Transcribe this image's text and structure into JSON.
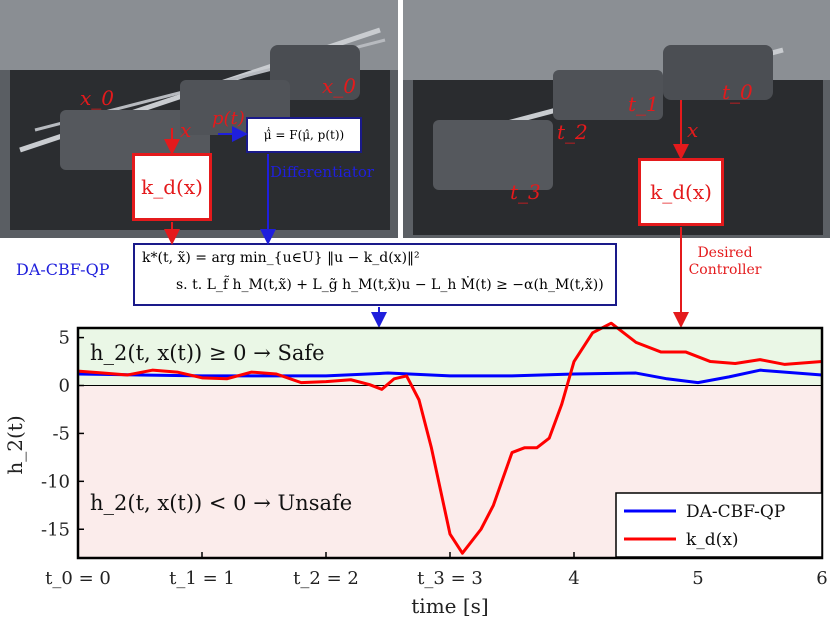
{
  "photos": {
    "left_labels": [
      "x_0",
      "x_0",
      "x",
      "p(t)"
    ],
    "right_labels": [
      "t_0",
      "t_1",
      "t_2",
      "t_3",
      "x"
    ]
  },
  "blocks": {
    "kd_left": "k_d(x)",
    "kd_right": "k_d(x)",
    "differentiator_eq": "μ̂̇ = F(μ̂, p(t))",
    "differentiator_label": "Differentiator",
    "qp_label": "DA-CBF-QP",
    "qp_line1": "k*(t, x̃) = arg min_{u∈U} ‖u − k_d(x)‖²",
    "qp_line2": "s. t. L_f̃ h_M(t,x̃) + L_g̃ h_M(t,x̃)u − L_h Ṁ(t) ≥ −α(h_M(t,x̃))",
    "desired_line1": "Desired",
    "desired_line2": "Controller"
  },
  "colors": {
    "red": "#e41a1c",
    "blue": "#1f1fdc",
    "safe_bg": "#eaf7e6",
    "unsafe_bg": "#fbeceb"
  },
  "chart_data": {
    "type": "line",
    "ylabel": "h_2(t)",
    "xlabel": "time [s]",
    "xlim": [
      0,
      6
    ],
    "ylim": [
      -18,
      6
    ],
    "x_ticks": [
      "t_0 = 0",
      "t_1 = 1",
      "t_2 = 2",
      "t_3 = 3",
      "4",
      "5",
      "6"
    ],
    "y_ticks": [
      "5",
      "0",
      "-5",
      "-10",
      "-15"
    ],
    "annotations": {
      "safe": "h_2(t, x(t)) ≥ 0 → Safe",
      "unsafe": "h_2(t, x(t)) < 0 → Unsafe"
    },
    "series": [
      {
        "name": "DA-CBF-QP",
        "color": "#0000ff",
        "x": [
          0,
          0.5,
          1,
          1.5,
          2,
          2.5,
          3,
          3.5,
          4,
          4.5,
          4.75,
          5,
          5.25,
          5.5,
          6
        ],
        "y": [
          1.2,
          1.1,
          1.0,
          1.0,
          1.0,
          1.3,
          1.0,
          1.0,
          1.2,
          1.3,
          0.7,
          0.3,
          0.9,
          1.6,
          1.1
        ]
      },
      {
        "name": "k_d(x)",
        "color": "#ff0000",
        "x": [
          0,
          0.2,
          0.4,
          0.6,
          0.8,
          1.0,
          1.2,
          1.4,
          1.6,
          1.8,
          2.0,
          2.2,
          2.35,
          2.45,
          2.55,
          2.65,
          2.75,
          2.85,
          2.95,
          3.0,
          3.1,
          3.25,
          3.35,
          3.5,
          3.6,
          3.7,
          3.8,
          3.9,
          4.0,
          4.15,
          4.3,
          4.5,
          4.7,
          4.9,
          5.1,
          5.3,
          5.5,
          5.7,
          6.0
        ],
        "y": [
          1.5,
          1.3,
          1.1,
          1.6,
          1.4,
          0.8,
          0.7,
          1.4,
          1.2,
          0.3,
          0.4,
          0.6,
          0.1,
          -0.4,
          0.7,
          1.0,
          -1.5,
          -6.5,
          -12.5,
          -15.5,
          -17.5,
          -15.0,
          -12.5,
          -7.0,
          -6.5,
          -6.5,
          -5.5,
          -2.0,
          2.5,
          5.5,
          6.5,
          4.5,
          3.5,
          3.5,
          2.5,
          2.3,
          2.7,
          2.2,
          2.5
        ]
      }
    ],
    "legend": "bottom-right"
  }
}
